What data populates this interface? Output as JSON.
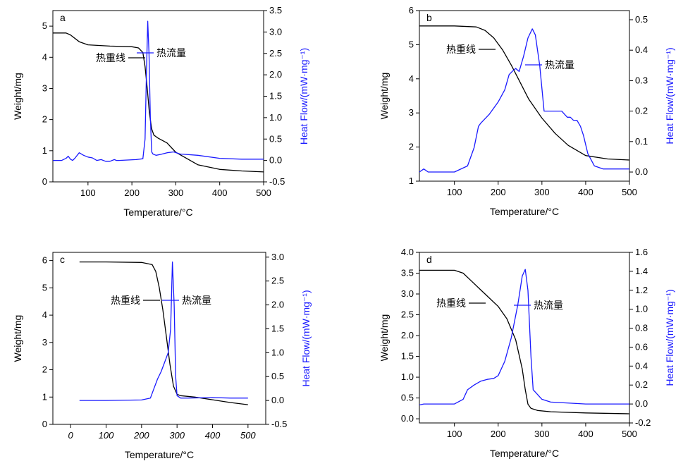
{
  "colors": {
    "weight_line": "#000000",
    "heat_flow_line": "#1a1aff",
    "right_axis_title": "#1a1aff"
  },
  "chart_data": [
    {
      "type": "line",
      "panel_label": "a",
      "xlabel": "Temperature/°C",
      "ylabel": "Weight/mg",
      "y2label": "Heat Flow/(mW·mg⁻¹)",
      "xlim": [
        20,
        500
      ],
      "ylim": [
        0,
        5.5
      ],
      "y2lim": [
        -0.5,
        3.5
      ],
      "xticks": [
        100,
        200,
        300,
        400,
        500
      ],
      "yticks": [
        0,
        1,
        2,
        3,
        4,
        5
      ],
      "y2ticks": [
        -0.5,
        0.0,
        0.5,
        1.0,
        1.5,
        2.0,
        2.5,
        3.0,
        3.5
      ],
      "grid": false,
      "legend_labels": {
        "weight": "热重线",
        "heat": "热流量"
      },
      "series": [
        {
          "name": "热重线",
          "axis": "left",
          "x": [
            20,
            50,
            60,
            80,
            100,
            150,
            200,
            215,
            225,
            230,
            235,
            240,
            245,
            250,
            260,
            280,
            300,
            350,
            400,
            450,
            500
          ],
          "y": [
            4.78,
            4.78,
            4.72,
            4.5,
            4.4,
            4.36,
            4.34,
            4.3,
            4.15,
            3.7,
            3.0,
            2.2,
            1.7,
            1.5,
            1.4,
            1.25,
            0.95,
            0.55,
            0.4,
            0.35,
            0.32
          ]
        },
        {
          "name": "热流量",
          "axis": "right",
          "x": [
            20,
            40,
            50,
            55,
            60,
            65,
            70,
            80,
            90,
            100,
            110,
            120,
            130,
            140,
            150,
            160,
            165,
            170,
            190,
            210,
            225,
            230,
            233,
            236,
            239,
            242,
            245,
            248,
            255,
            265,
            280,
            295,
            310,
            350,
            400,
            450,
            500
          ],
          "y": [
            0.0,
            0.0,
            0.05,
            0.1,
            0.03,
            0.0,
            0.05,
            0.18,
            0.12,
            0.08,
            0.06,
            0.0,
            0.02,
            -0.02,
            -0.02,
            0.02,
            0.0,
            0.0,
            0.01,
            0.02,
            0.04,
            0.5,
            2.0,
            3.25,
            2.5,
            1.0,
            0.2,
            0.15,
            0.12,
            0.14,
            0.18,
            0.2,
            0.15,
            0.12,
            0.05,
            0.03,
            0.03
          ]
        }
      ]
    },
    {
      "type": "line",
      "panel_label": "b",
      "xlabel": "Temperature/°C",
      "ylabel": "Weight/mg",
      "y2label": "Heat Flow/(mW·mg⁻¹)",
      "xlim": [
        20,
        500
      ],
      "ylim": [
        1,
        6
      ],
      "y2lim": [
        -0.03,
        0.53
      ],
      "xticks": [
        100,
        200,
        300,
        400,
        500
      ],
      "yticks": [
        1,
        2,
        3,
        4,
        5,
        6
      ],
      "y2ticks": [
        0.0,
        0.1,
        0.2,
        0.3,
        0.4,
        0.5
      ],
      "grid": false,
      "legend_labels": {
        "weight": "热重线",
        "heat": "热流量"
      },
      "series": [
        {
          "name": "热重线",
          "axis": "left",
          "x": [
            20,
            100,
            150,
            170,
            190,
            210,
            230,
            250,
            270,
            300,
            330,
            360,
            400,
            450,
            500
          ],
          "y": [
            5.55,
            5.55,
            5.52,
            5.42,
            5.2,
            4.85,
            4.4,
            3.9,
            3.4,
            2.85,
            2.4,
            2.05,
            1.75,
            1.65,
            1.62
          ]
        },
        {
          "name": "热流量",
          "axis": "right",
          "x": [
            20,
            30,
            40,
            60,
            100,
            130,
            145,
            155,
            160,
            180,
            200,
            215,
            225,
            232,
            240,
            248,
            258,
            268,
            278,
            285,
            295,
            305,
            315,
            330,
            345,
            358,
            365,
            372,
            380,
            388,
            395,
            405,
            420,
            440,
            460,
            480,
            500
          ],
          "y": [
            0.0,
            0.01,
            0.0,
            0.0,
            0.0,
            0.02,
            0.08,
            0.15,
            0.16,
            0.19,
            0.23,
            0.27,
            0.32,
            0.33,
            0.34,
            0.33,
            0.38,
            0.44,
            0.47,
            0.45,
            0.35,
            0.2,
            0.2,
            0.2,
            0.2,
            0.18,
            0.18,
            0.17,
            0.17,
            0.15,
            0.12,
            0.06,
            0.02,
            0.01,
            0.01,
            0.01,
            0.01
          ]
        }
      ]
    },
    {
      "type": "line",
      "panel_label": "c",
      "xlabel": "Temperature/°C",
      "ylabel": "Weight/mg",
      "y2label": "Heat Flow/(mW·mg⁻¹)",
      "xlim": [
        -50,
        550
      ],
      "ylim": [
        0,
        6.3
      ],
      "y2lim": [
        -0.5,
        3.1
      ],
      "xticks": [
        0,
        100,
        200,
        300,
        400,
        500
      ],
      "yticks": [
        0,
        1,
        2,
        3,
        4,
        5,
        6
      ],
      "y2ticks": [
        -0.5,
        0.0,
        0.5,
        1.0,
        1.5,
        2.0,
        2.5,
        3.0
      ],
      "grid": false,
      "legend_labels": {
        "weight": "热重线",
        "heat": "热流量"
      },
      "series": [
        {
          "name": "热重线",
          "axis": "left",
          "x": [
            25,
            100,
            200,
            230,
            240,
            250,
            260,
            270,
            280,
            290,
            300,
            310,
            350,
            400,
            450,
            500
          ],
          "y": [
            5.95,
            5.95,
            5.93,
            5.85,
            5.6,
            5.0,
            4.2,
            3.2,
            2.2,
            1.4,
            1.1,
            1.05,
            1.0,
            0.9,
            0.8,
            0.72
          ]
        },
        {
          "name": "热流量",
          "axis": "right",
          "x": [
            25,
            100,
            200,
            225,
            235,
            245,
            255,
            265,
            275,
            282,
            287,
            292,
            296,
            300,
            310,
            330,
            400,
            450,
            500
          ],
          "y": [
            0.0,
            0.0,
            0.01,
            0.05,
            0.25,
            0.45,
            0.6,
            0.8,
            1.0,
            1.5,
            2.9,
            2.0,
            0.5,
            0.1,
            0.05,
            0.05,
            0.06,
            0.05,
            0.05
          ]
        }
      ]
    },
    {
      "type": "line",
      "panel_label": "d",
      "xlabel": "Temperature/°C",
      "ylabel": "Weight/mg",
      "y2label": "Heat Flow/(mW·mg⁻¹)",
      "xlim": [
        20,
        500
      ],
      "ylim": [
        -0.1,
        4.0
      ],
      "y2lim": [
        -0.2,
        1.6
      ],
      "xticks": [
        100,
        200,
        300,
        400,
        500
      ],
      "yticks": [
        0.0,
        0.5,
        1.0,
        1.5,
        2.0,
        2.5,
        3.0,
        3.5,
        4.0
      ],
      "y2ticks": [
        -0.2,
        0.0,
        0.2,
        0.4,
        0.6,
        0.8,
        1.0,
        1.2,
        1.4,
        1.6
      ],
      "grid": false,
      "legend_labels": {
        "weight": "热重线",
        "heat": "热流量"
      },
      "series": [
        {
          "name": "热重线",
          "axis": "left",
          "x": [
            20,
            100,
            120,
            140,
            160,
            180,
            200,
            220,
            240,
            255,
            262,
            268,
            275,
            290,
            320,
            400,
            500
          ],
          "y": [
            3.57,
            3.57,
            3.5,
            3.3,
            3.1,
            2.9,
            2.7,
            2.4,
            1.9,
            1.2,
            0.7,
            0.35,
            0.25,
            0.2,
            0.17,
            0.14,
            0.12
          ]
        },
        {
          "name": "热流量",
          "axis": "right",
          "x": [
            20,
            30,
            60,
            100,
            120,
            130,
            145,
            160,
            175,
            190,
            200,
            215,
            230,
            245,
            255,
            262,
            268,
            275,
            280,
            300,
            320,
            400,
            500
          ],
          "y": [
            -0.01,
            0.0,
            0.0,
            0.0,
            0.05,
            0.15,
            0.2,
            0.24,
            0.26,
            0.27,
            0.3,
            0.45,
            0.7,
            1.05,
            1.35,
            1.42,
            1.2,
            0.5,
            0.15,
            0.05,
            0.02,
            0.0,
            0.0
          ]
        }
      ]
    }
  ]
}
